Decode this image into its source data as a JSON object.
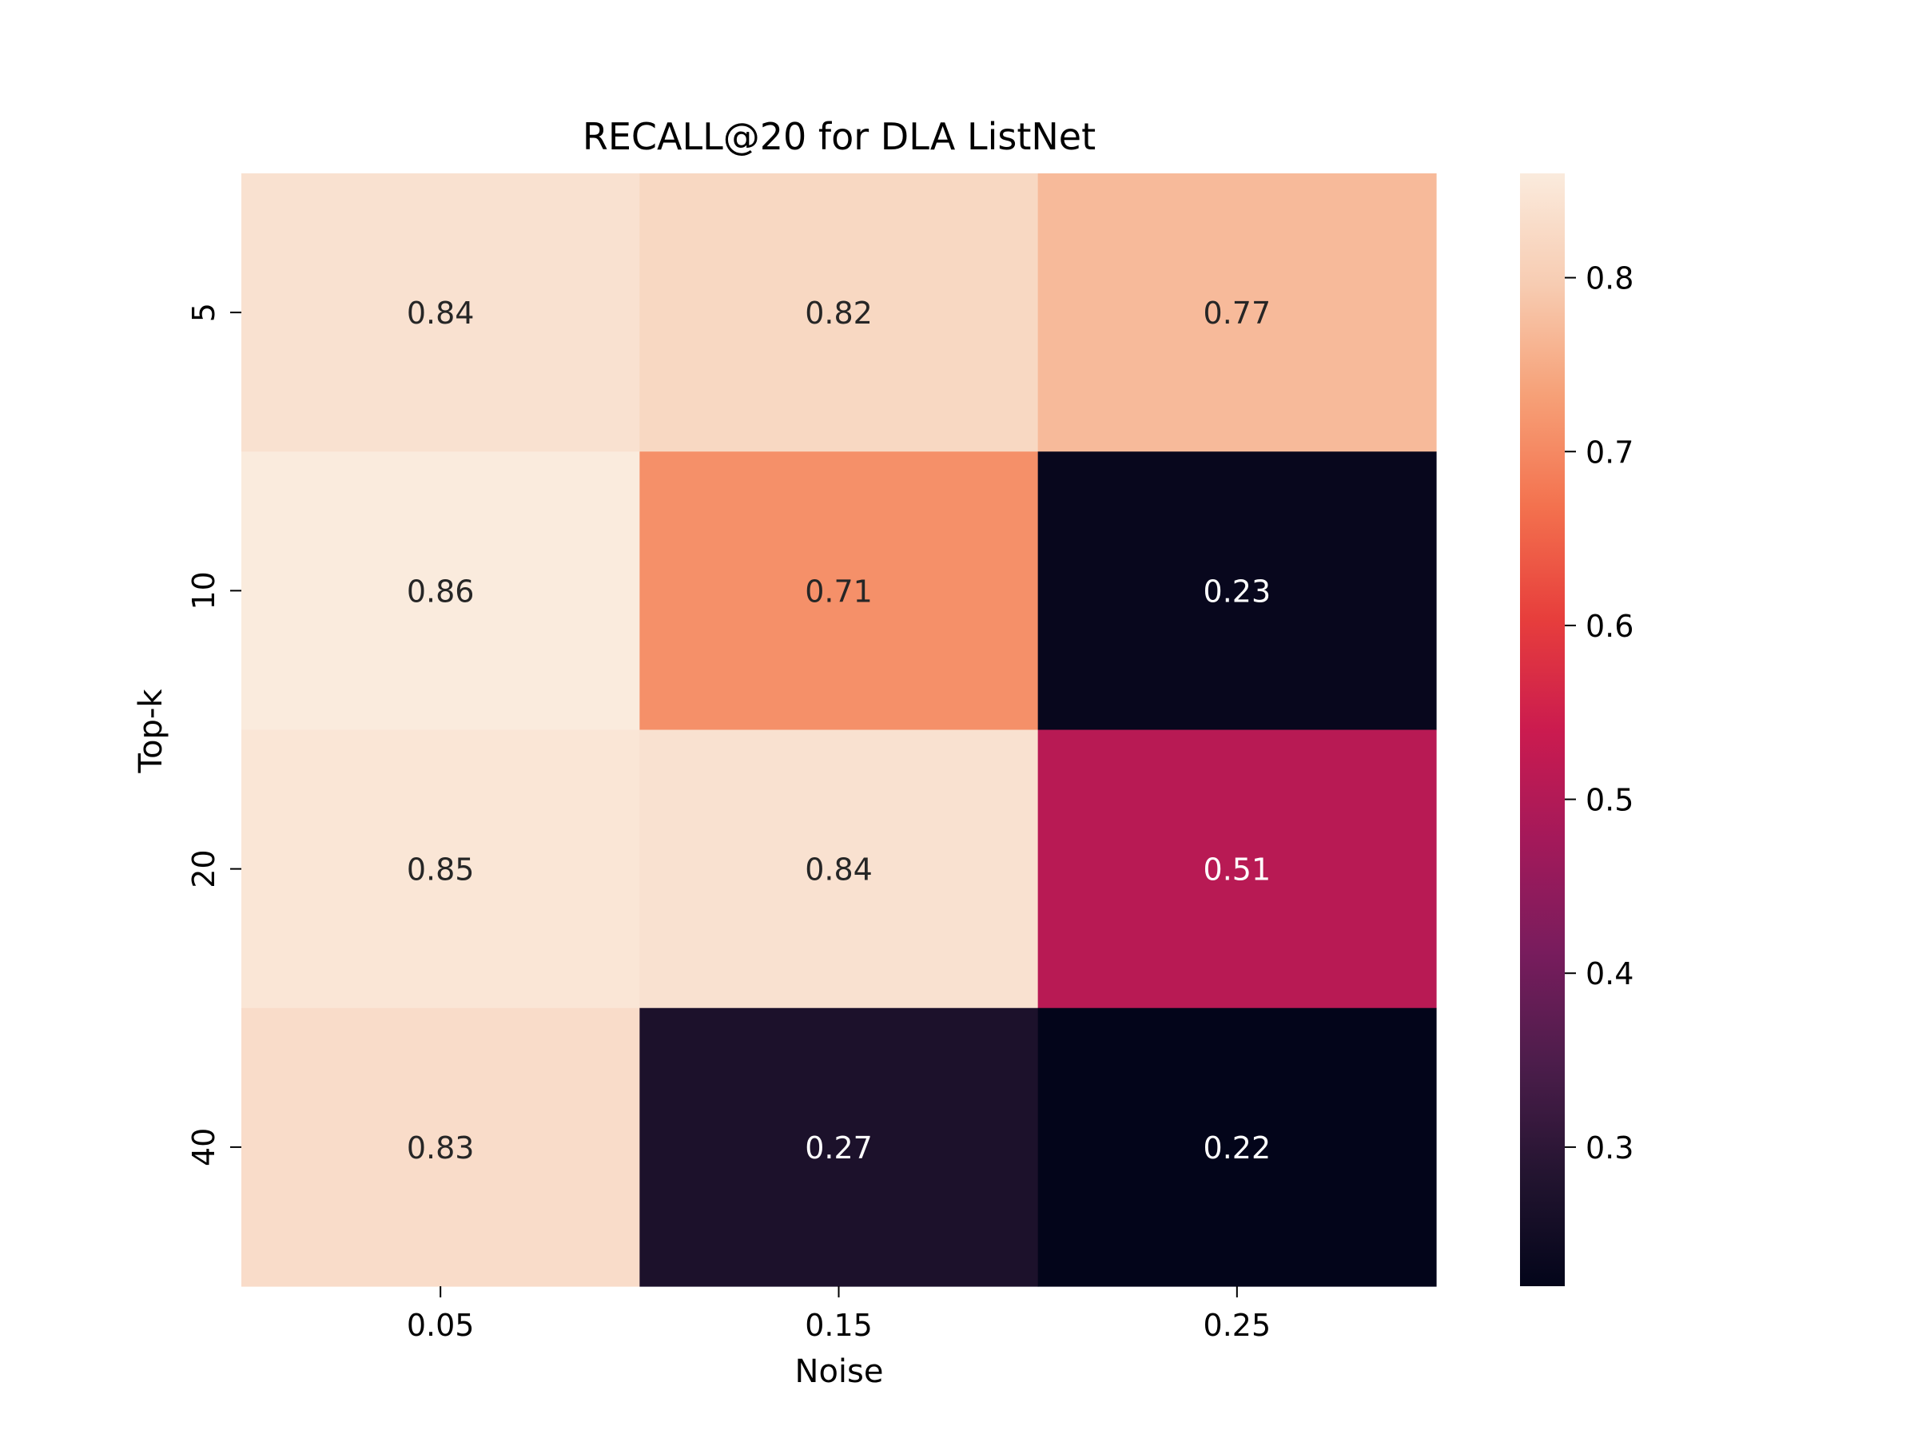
{
  "chart_data": {
    "type": "heatmap",
    "title": "RECALL@20 for DLA ListNet",
    "xlabel": "Noise",
    "ylabel": "Top-k",
    "x_categories": [
      "0.05",
      "0.15",
      "0.25"
    ],
    "y_categories": [
      "5",
      "10",
      "20",
      "40"
    ],
    "values": [
      [
        0.84,
        0.82,
        0.77
      ],
      [
        0.86,
        0.71,
        0.23
      ],
      [
        0.85,
        0.84,
        0.51
      ],
      [
        0.83,
        0.27,
        0.22
      ]
    ],
    "value_labels": [
      [
        "0.84",
        "0.82",
        "0.77"
      ],
      [
        "0.86",
        "0.71",
        "0.23"
      ],
      [
        "0.85",
        "0.84",
        "0.51"
      ],
      [
        "0.83",
        "0.27",
        "0.22"
      ]
    ],
    "colorbar": {
      "min": 0.22,
      "max": 0.86,
      "ticks": [
        0.3,
        0.4,
        0.5,
        0.6,
        0.7,
        0.8
      ],
      "tick_labels": [
        "0.3",
        "0.4",
        "0.5",
        "0.6",
        "0.7",
        "0.8"
      ],
      "colormap": "rocket"
    }
  }
}
